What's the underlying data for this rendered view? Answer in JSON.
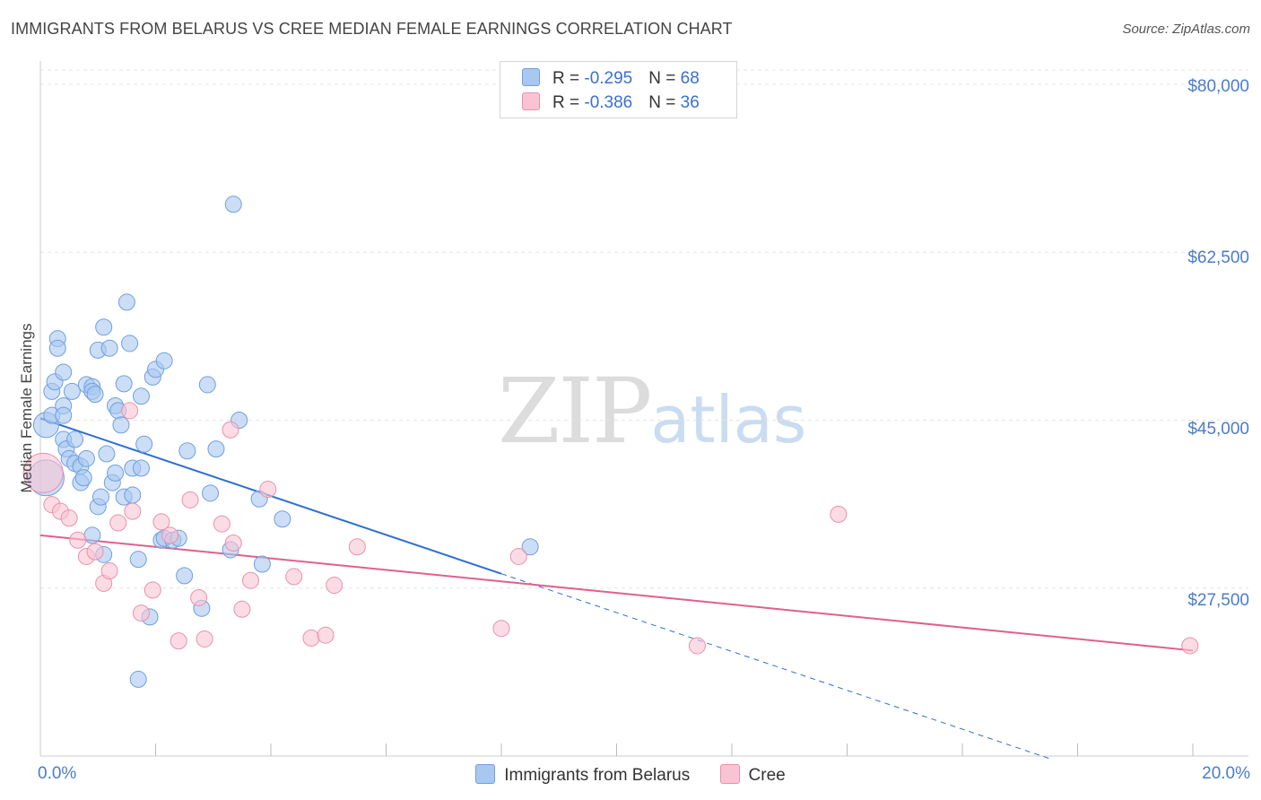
{
  "chart_data": {
    "type": "scatter",
    "title": "IMMIGRANTS FROM BELARUS VS CREE MEDIAN FEMALE EARNINGS CORRELATION CHART",
    "source": "Source: ZipAtlas.com",
    "ylabel": "Median Female Earnings",
    "xlabel": "",
    "xlim": [
      0,
      20
    ],
    "ylim": [
      10000,
      81500
    ],
    "x_tick_labels": [
      "0.0%",
      "20.0%"
    ],
    "y_ticks": [
      {
        "value": 80000,
        "label": "$80,000"
      },
      {
        "value": 62500,
        "label": "$62,500"
      },
      {
        "value": 45000,
        "label": "$45,000"
      },
      {
        "value": 27500,
        "label": "$27,500"
      }
    ],
    "watermark": {
      "a": "ZIP",
      "b": "atlas"
    },
    "stats": [
      {
        "r_label": "R = ",
        "r": "-0.295",
        "n_label": "N = ",
        "n": "68",
        "color": "#a9c8f0",
        "border": "#6f9fe0"
      },
      {
        "r_label": "R = ",
        "r": "-0.386",
        "n_label": "N = ",
        "n": "36",
        "color": "#f8c4d4",
        "border": "#ec8fab"
      }
    ],
    "series": [
      {
        "name": "Immigrants from Belarus",
        "color": "#a9c8f0",
        "stroke": "#6f9fe0",
        "trend": {
          "x0": 0,
          "y0": 45200,
          "x1": 8.0,
          "y1": 29000,
          "dash_to_x": 17.5,
          "color": "#2f6fd0"
        },
        "points": [
          [
            0.1,
            39000,
            20
          ],
          [
            0.1,
            44500,
            14
          ],
          [
            0.2,
            45500,
            9
          ],
          [
            0.2,
            48000,
            9
          ],
          [
            0.25,
            49000,
            9
          ],
          [
            0.3,
            53500,
            9
          ],
          [
            0.3,
            52500,
            9
          ],
          [
            0.4,
            50000,
            9
          ],
          [
            0.4,
            46500,
            9
          ],
          [
            0.4,
            45500,
            9
          ],
          [
            0.4,
            43000,
            9
          ],
          [
            0.45,
            42000,
            9
          ],
          [
            0.5,
            41000,
            9
          ],
          [
            0.55,
            48000,
            9
          ],
          [
            0.6,
            43000,
            9
          ],
          [
            0.6,
            40500,
            9
          ],
          [
            0.7,
            40200,
            9
          ],
          [
            0.7,
            38500,
            9
          ],
          [
            0.75,
            39000,
            9
          ],
          [
            0.8,
            41000,
            9
          ],
          [
            0.8,
            48700,
            9
          ],
          [
            0.9,
            48500,
            9
          ],
          [
            0.9,
            33000,
            9
          ],
          [
            0.9,
            48000,
            9
          ],
          [
            0.95,
            47700,
            9
          ],
          [
            1.0,
            36000,
            9
          ],
          [
            1.0,
            52300,
            9
          ],
          [
            1.05,
            37000,
            9
          ],
          [
            1.1,
            31000,
            9
          ],
          [
            1.1,
            54700,
            9
          ],
          [
            1.15,
            41500,
            9
          ],
          [
            1.2,
            52500,
            9
          ],
          [
            1.25,
            38500,
            9
          ],
          [
            1.3,
            39500,
            9
          ],
          [
            1.3,
            46500,
            9
          ],
          [
            1.35,
            46000,
            9
          ],
          [
            1.4,
            44500,
            9
          ],
          [
            1.45,
            37000,
            9
          ],
          [
            1.45,
            48800,
            9
          ],
          [
            1.5,
            57300,
            9
          ],
          [
            1.55,
            53000,
            9
          ],
          [
            1.6,
            37200,
            9
          ],
          [
            1.6,
            40000,
            9
          ],
          [
            1.7,
            30500,
            9
          ],
          [
            1.75,
            47500,
            9
          ],
          [
            1.75,
            40000,
            9
          ],
          [
            1.8,
            42500,
            9
          ],
          [
            1.9,
            24500,
            9
          ],
          [
            1.95,
            49500,
            9
          ],
          [
            2.0,
            50300,
            9
          ],
          [
            2.1,
            32500,
            9
          ],
          [
            2.15,
            51200,
            9
          ],
          [
            2.15,
            32700,
            9
          ],
          [
            2.3,
            32500,
            9
          ],
          [
            2.4,
            32700,
            9
          ],
          [
            2.5,
            28800,
            9
          ],
          [
            2.55,
            41800,
            9
          ],
          [
            2.8,
            25400,
            9
          ],
          [
            2.9,
            48700,
            9
          ],
          [
            2.95,
            37400,
            9
          ],
          [
            3.05,
            42000,
            9
          ],
          [
            3.3,
            31500,
            9
          ],
          [
            3.35,
            67500,
            9
          ],
          [
            3.45,
            45000,
            9
          ],
          [
            3.8,
            36800,
            9
          ],
          [
            3.85,
            30000,
            9
          ],
          [
            4.2,
            34700,
            9
          ],
          [
            8.5,
            31800,
            9
          ],
          [
            1.7,
            18000,
            9
          ]
        ]
      },
      {
        "name": "Cree",
        "color": "#f8c4d4",
        "stroke": "#ec8fab",
        "trend": {
          "x0": 0,
          "y0": 33000,
          "x1": 20,
          "y1": 21000,
          "color": "#e0608c"
        },
        "points": [
          [
            0.05,
            39500,
            22
          ],
          [
            0.2,
            36200,
            9
          ],
          [
            0.35,
            35500,
            9
          ],
          [
            0.5,
            34800,
            9
          ],
          [
            0.65,
            32500,
            9
          ],
          [
            0.8,
            30800,
            9
          ],
          [
            0.95,
            31300,
            9
          ],
          [
            1.1,
            28000,
            9
          ],
          [
            1.2,
            29300,
            9
          ],
          [
            1.35,
            34300,
            9
          ],
          [
            1.55,
            46000,
            9
          ],
          [
            1.6,
            35500,
            9
          ],
          [
            1.75,
            24900,
            9
          ],
          [
            1.95,
            27300,
            9
          ],
          [
            2.1,
            34400,
            9
          ],
          [
            2.25,
            33000,
            9
          ],
          [
            2.4,
            22000,
            9
          ],
          [
            2.6,
            36700,
            9
          ],
          [
            2.75,
            26500,
            9
          ],
          [
            2.85,
            22200,
            9
          ],
          [
            3.15,
            34200,
            9
          ],
          [
            3.3,
            44000,
            9
          ],
          [
            3.35,
            32200,
            9
          ],
          [
            3.5,
            25300,
            9
          ],
          [
            3.65,
            28300,
            9
          ],
          [
            3.95,
            37800,
            9
          ],
          [
            4.4,
            28700,
            9
          ],
          [
            4.7,
            22300,
            9
          ],
          [
            4.95,
            22600,
            9
          ],
          [
            5.1,
            27800,
            9
          ],
          [
            5.5,
            31800,
            9
          ],
          [
            8.0,
            23300,
            9
          ],
          [
            8.3,
            30800,
            9
          ],
          [
            11.4,
            21500,
            9
          ],
          [
            13.85,
            35200,
            9
          ],
          [
            19.95,
            21500,
            9
          ]
        ]
      }
    ]
  }
}
